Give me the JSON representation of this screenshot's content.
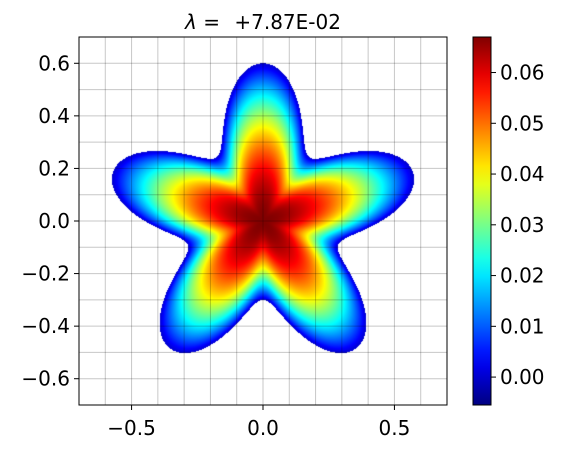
{
  "chart_data": {
    "type": "heatmap",
    "title_prefix": "λ =",
    "title_value": "+7.87E-02",
    "xlim": [
      -0.7,
      0.7
    ],
    "ylim": [
      -0.7,
      0.7
    ],
    "x_ticks": [
      -0.5,
      0.0,
      0.5
    ],
    "x_tick_labels": [
      "−0.5",
      "0.0",
      "0.5"
    ],
    "y_ticks": [
      -0.6,
      -0.4,
      -0.2,
      0.0,
      0.2,
      0.4,
      0.6
    ],
    "y_tick_labels": [
      "−0.6",
      "−0.4",
      "−0.2",
      "0.0",
      "0.2",
      "0.4",
      "0.6"
    ],
    "grid": true,
    "colormap": "jet",
    "colorbar": {
      "range": [
        -0.0055,
        0.067
      ],
      "ticks": [
        0.0,
        0.01,
        0.02,
        0.03,
        0.04,
        0.05,
        0.06
      ],
      "tick_labels": [
        "0.00",
        "0.01",
        "0.02",
        "0.03",
        "0.04",
        "0.05",
        "0.06"
      ]
    },
    "field": {
      "domain": "five-lobed star",
      "peak_value": 0.067,
      "peak_location": [
        0.0,
        0.0
      ],
      "boundary_value": 0.0,
      "domain_mean_radius": 0.45,
      "domain_lobe_amplitude": 0.15,
      "lobe_tip_direction_deg": 90,
      "lobes": 5
    }
  }
}
